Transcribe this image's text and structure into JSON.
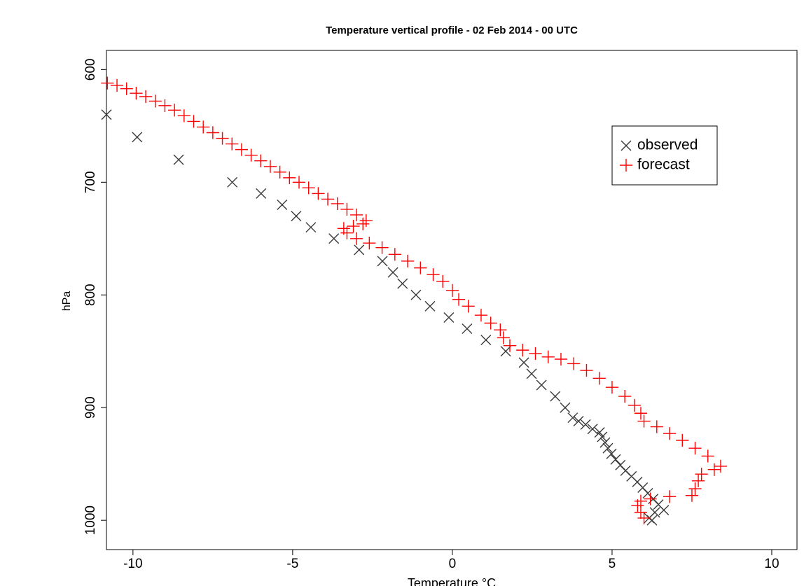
{
  "chart_data": {
    "type": "scatter",
    "title": "Temperature vertical profile - 02 Feb 2014 - 00 UTC",
    "x_label": "Temperature °C",
    "y_label": "hPa",
    "xlim": [
      -10.83,
      10.79
    ],
    "ylim": [
      1026,
      583
    ],
    "xticks": [
      -10,
      -5,
      0,
      5,
      10
    ],
    "yticks": [
      600,
      700,
      800,
      900,
      1000
    ],
    "legend": "top-right",
    "series": [
      {
        "name": "observed",
        "color": "#3a3a3a",
        "marker": "x",
        "x": [
          -10.83,
          -9.87,
          -8.57,
          -6.89,
          -5.99,
          -5.33,
          -4.89,
          -4.43,
          -3.71,
          -2.92,
          -2.19,
          -1.86,
          -1.56,
          -1.14,
          -0.7,
          -0.11,
          0.46,
          1.05,
          1.67,
          2.24,
          2.48,
          2.79,
          3.22,
          3.53,
          3.77,
          3.95,
          4.17,
          4.39,
          4.61,
          4.69,
          4.78,
          4.87,
          4.98,
          5.11,
          5.26,
          5.42,
          5.61,
          5.79,
          5.96,
          6.12,
          6.29,
          6.45,
          6.62,
          6.34,
          6.16,
          6.25
        ],
        "values": [
          640,
          660,
          680,
          700,
          710,
          720,
          730,
          740,
          750,
          760,
          770,
          780,
          790,
          800,
          810,
          820,
          830,
          840,
          850,
          860,
          870,
          880,
          890,
          900,
          909,
          912,
          915,
          919,
          922,
          926,
          931,
          936,
          941,
          946,
          951,
          956,
          961,
          966,
          971,
          976,
          981,
          986,
          991,
          993,
          998,
          1000
        ]
      },
      {
        "name": "forecast",
        "color": "#ff0000",
        "marker": "+",
        "x": [
          -10.8,
          -10.5,
          -10.2,
          -9.9,
          -9.6,
          -9.3,
          -9.0,
          -8.7,
          -8.4,
          -8.1,
          -7.8,
          -7.5,
          -7.2,
          -6.9,
          -6.6,
          -6.3,
          -6.0,
          -5.7,
          -5.4,
          -5.1,
          -4.8,
          -4.5,
          -4.2,
          -3.9,
          -3.6,
          -3.3,
          -3.0,
          -2.7,
          -2.8,
          -3.1,
          -3.4,
          -3.3,
          -3.0,
          -2.6,
          -2.2,
          -1.8,
          -1.4,
          -1.0,
          -0.6,
          -0.3,
          0.0,
          0.2,
          0.5,
          0.9,
          1.2,
          1.5,
          1.6,
          1.8,
          2.2,
          2.6,
          3.0,
          3.4,
          3.8,
          4.2,
          4.6,
          5.0,
          5.4,
          5.7,
          5.9,
          6.0,
          6.4,
          6.8,
          7.2,
          7.6,
          8.0,
          8.4,
          8.2,
          7.8,
          7.7,
          7.6,
          7.5,
          6.8,
          6.2,
          5.9,
          5.8,
          5.9,
          6.0
        ],
        "values": [
          612,
          614,
          617,
          621,
          624,
          628,
          632,
          636,
          641,
          646,
          651,
          656,
          661,
          666,
          671,
          676,
          681,
          686,
          691,
          696,
          700,
          705,
          710,
          715,
          719,
          724,
          729,
          734,
          737,
          739,
          741,
          745,
          750,
          754,
          758,
          764,
          770,
          776,
          782,
          788,
          796,
          804,
          810,
          818,
          825,
          831,
          838,
          845,
          849,
          852,
          855,
          857,
          861,
          867,
          874,
          882,
          890,
          898,
          905,
          912,
          917,
          923,
          929,
          936,
          943,
          952,
          955,
          959,
          965,
          972,
          978,
          979,
          981,
          983,
          987,
          993,
          998
        ]
      }
    ]
  }
}
